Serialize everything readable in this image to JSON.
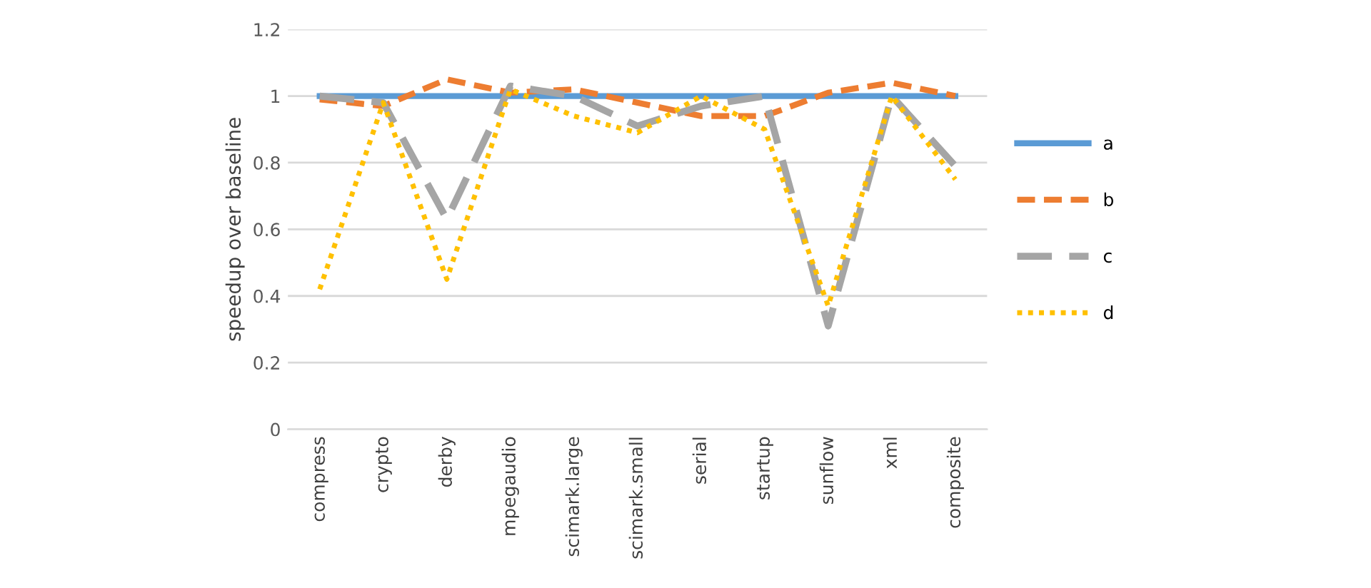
{
  "chart_data": {
    "type": "line",
    "ylabel": "speedup over baseline",
    "categories": [
      "compress",
      "crypto",
      "derby",
      "mpegaudio",
      "scimark.large",
      "scimark.small",
      "serial",
      "startup",
      "sunflow",
      "xml",
      "composite"
    ],
    "series": [
      {
        "name": "a",
        "color": "#5b9bd5",
        "line_style": "solid",
        "values": [
          1,
          1,
          1,
          1,
          1,
          1,
          1,
          1,
          1,
          1,
          1
        ]
      },
      {
        "name": "b",
        "color": "#ed7d31",
        "line_style": "dashed",
        "values": [
          0.99,
          0.97,
          1.05,
          1.01,
          1.02,
          0.98,
          0.94,
          0.94,
          1.01,
          1.04,
          1.0
        ]
      },
      {
        "name": "c",
        "color": "#a5a5a5",
        "line_style": "longdash",
        "values": [
          1.0,
          0.98,
          0.63,
          1.03,
          1.0,
          0.91,
          0.97,
          1.0,
          0.31,
          1.0,
          0.79
        ]
      },
      {
        "name": "d",
        "color": "#ffc000",
        "line_style": "dotted",
        "values": [
          0.42,
          0.98,
          0.45,
          1.02,
          0.94,
          0.89,
          1.0,
          0.9,
          0.37,
          1.0,
          0.75
        ]
      }
    ],
    "ylim": [
      0,
      1.2
    ],
    "yticks": [
      0,
      0.2,
      0.4,
      0.6,
      0.8,
      1,
      1.2
    ],
    "grid": "y",
    "legend": "right",
    "marker": "none"
  }
}
